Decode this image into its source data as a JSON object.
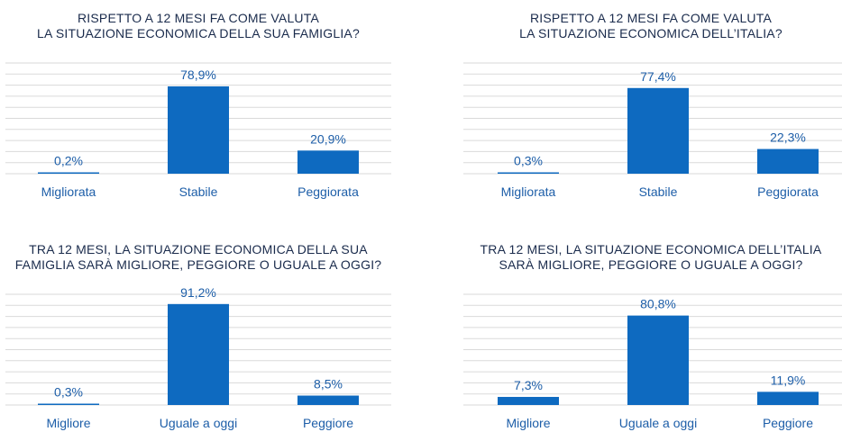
{
  "colors": {
    "bar": "#0e6ac0",
    "grid": "#dadada",
    "text": "#1d5ea8",
    "title": "#1a2b4c"
  },
  "chart_data": [
    {
      "type": "bar",
      "title_lines": [
        "RISPETTO A 12 MESI FA COME VALUTA",
        "LA SITUAZIONE ECONOMICA DELLA SUA FAMIGLIA?"
      ],
      "categories": [
        "Migliorata",
        "Stabile",
        "Peggiorata"
      ],
      "values": [
        0.2,
        78.9,
        20.9
      ],
      "labels": [
        "0,2%",
        "78,9%",
        "20,9%"
      ],
      "ylim": [
        0,
        100
      ],
      "grid": true
    },
    {
      "type": "bar",
      "title_lines": [
        "RISPETTO A 12 MESI FA COME VALUTA",
        "LA SITUAZIONE ECONOMICA DELL’ITALIA?"
      ],
      "categories": [
        "Migliorata",
        "Stabile",
        "Peggiorata"
      ],
      "values": [
        0.3,
        77.4,
        22.3
      ],
      "labels": [
        "0,3%",
        "77,4%",
        "22,3%"
      ],
      "ylim": [
        0,
        100
      ],
      "grid": true
    },
    {
      "type": "bar",
      "title_lines": [
        "TRA 12 MESI, LA SITUAZIONE ECONOMICA DELLA SUA",
        "FAMIGLIA SARÀ MIGLIORE, PEGGIORE O UGUALE A OGGI?"
      ],
      "categories": [
        "Migliore",
        "Uguale a oggi",
        "Peggiore"
      ],
      "values": [
        0.3,
        91.2,
        8.5
      ],
      "labels": [
        "0,3%",
        "91,2%",
        "8,5%"
      ],
      "ylim": [
        0,
        100
      ],
      "grid": true
    },
    {
      "type": "bar",
      "title_lines": [
        "TRA 12 MESI, LA SITUAZIONE ECONOMICA DELL’ITALIA",
        "SARÀ MIGLIORE, PEGGIORE O UGUALE A OGGI?"
      ],
      "categories": [
        "Migliore",
        "Uguale a oggi",
        "Peggiore"
      ],
      "values": [
        7.3,
        80.8,
        11.9
      ],
      "labels": [
        "7,3%",
        "80,8%",
        "11,9%"
      ],
      "ylim": [
        0,
        100
      ],
      "grid": true
    }
  ]
}
